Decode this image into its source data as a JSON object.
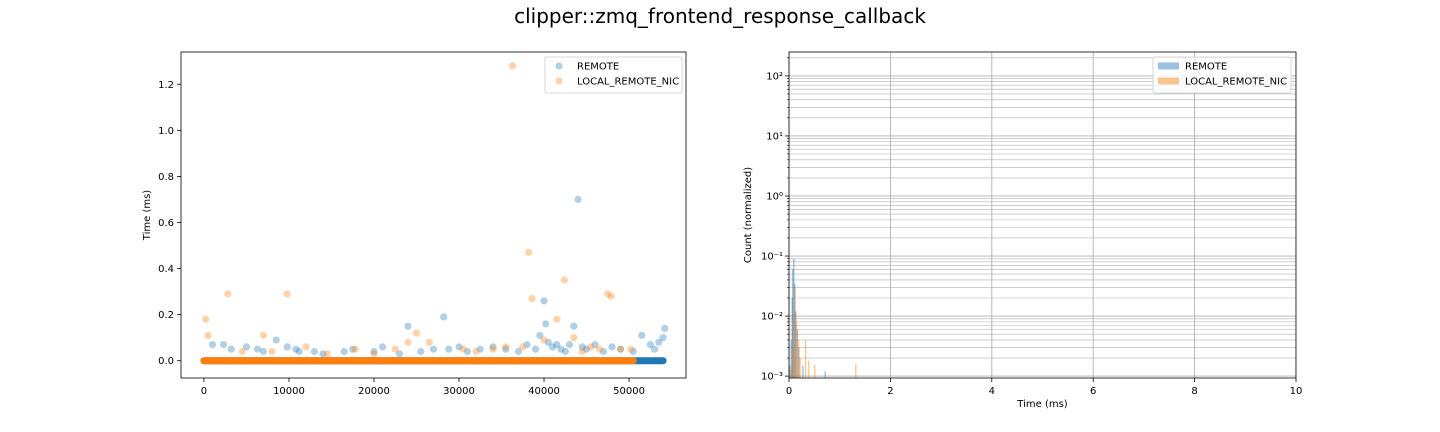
{
  "figure": {
    "title": "clipper::zmq_frontend_response_callback"
  },
  "colors": {
    "remote": "#1f77b4",
    "local": "#ff7f0e",
    "grid": "#b0b0b0"
  },
  "chart_data": [
    {
      "type": "scatter",
      "xlabel": "",
      "ylabel": "Time (ms)",
      "xlim": [
        -2700,
        56700
      ],
      "ylim": [
        -0.075,
        1.34
      ],
      "xticks": [
        0,
        10000,
        20000,
        30000,
        40000,
        50000
      ],
      "xtick_labels": [
        "0",
        "10000",
        "20000",
        "30000",
        "40000",
        "50000"
      ],
      "yticks": [
        0.0,
        0.2,
        0.4,
        0.6,
        0.8,
        1.0,
        1.2
      ],
      "ytick_labels": [
        "0.0",
        "0.2",
        "0.4",
        "0.6",
        "0.8",
        "1.0",
        "1.2"
      ],
      "grid": false,
      "legend": "top-right",
      "series": [
        {
          "name": "REMOTE",
          "baseline": {
            "x_range": [
              0,
              54000
            ],
            "y": 0.0
          },
          "x": [
            1000,
            2300,
            3200,
            5000,
            6300,
            7000,
            8500,
            9800,
            10800,
            11200,
            13000,
            14000,
            16500,
            17500,
            20000,
            21000,
            23000,
            24000,
            25500,
            27000,
            28200,
            28800,
            30000,
            31000,
            32500,
            34000,
            35500,
            37000,
            38000,
            39000,
            39500,
            40000,
            40200,
            40500,
            41000,
            41500,
            42000,
            42500,
            43000,
            43500,
            44000,
            44500,
            45000,
            46000,
            47000,
            48000,
            49000,
            50500,
            51500,
            52500,
            53000,
            53500,
            54000,
            54200
          ],
          "y": [
            0.07,
            0.07,
            0.05,
            0.06,
            0.05,
            0.04,
            0.09,
            0.06,
            0.05,
            0.04,
            0.04,
            0.03,
            0.04,
            0.05,
            0.04,
            0.06,
            0.03,
            0.15,
            0.04,
            0.05,
            0.19,
            0.05,
            0.06,
            0.04,
            0.05,
            0.06,
            0.05,
            0.04,
            0.07,
            0.05,
            0.11,
            0.26,
            0.16,
            0.08,
            0.06,
            0.07,
            0.05,
            0.04,
            0.07,
            0.15,
            0.7,
            0.06,
            0.05,
            0.07,
            0.04,
            0.06,
            0.05,
            0.04,
            0.11,
            0.07,
            0.05,
            0.08,
            0.1,
            0.14
          ]
        },
        {
          "name": "LOCAL_REMOTE_NIC",
          "baseline": {
            "x_range": [
              0,
              50500
            ],
            "y": 0.0
          },
          "x": [
            200,
            500,
            2800,
            4500,
            7000,
            8000,
            9800,
            12000,
            14500,
            17800,
            20000,
            22500,
            24000,
            25000,
            26500,
            30500,
            32000,
            34000,
            35500,
            36300,
            37500,
            38200,
            38600,
            40000,
            41500,
            42400,
            43500,
            44500,
            45500,
            46500,
            47500,
            47900,
            49000,
            50200
          ],
          "y": [
            0.18,
            0.11,
            0.29,
            0.04,
            0.11,
            0.04,
            0.29,
            0.06,
            0.03,
            0.05,
            0.03,
            0.05,
            0.08,
            0.12,
            0.08,
            0.05,
            0.04,
            0.05,
            0.06,
            1.28,
            0.06,
            0.47,
            0.27,
            0.09,
            0.18,
            0.35,
            0.1,
            0.04,
            0.06,
            0.05,
            0.29,
            0.28,
            0.05,
            0.05
          ]
        }
      ]
    },
    {
      "type": "histogram",
      "xlabel": "Time (ms)",
      "ylabel": "Count (normalized)",
      "xlim": [
        0,
        10
      ],
      "ylim": [
        0.00093,
        250
      ],
      "yscale": "log",
      "xticks": [
        0,
        2,
        4,
        6,
        8,
        10
      ],
      "xtick_labels": [
        "0",
        "2",
        "4",
        "6",
        "8",
        "10"
      ],
      "yticks": [
        0.001,
        0.01,
        0.1,
        1,
        10,
        100
      ],
      "ytick_labels": [
        "10⁻³",
        "10⁻²",
        "10⁻¹",
        "10⁰",
        "10¹",
        "10²"
      ],
      "grid": true,
      "legend": "top-right",
      "series": [
        {
          "name": "REMOTE",
          "x": [
            0.0,
            0.03,
            0.05,
            0.06,
            0.08,
            0.1,
            0.12,
            0.15,
            0.18,
            0.26,
            0.7
          ],
          "y": [
            0.0015,
            0.004,
            0.02,
            0.06,
            0.09,
            0.035,
            0.012,
            0.006,
            0.003,
            0.0015,
            0.0012
          ]
        },
        {
          "name": "LOCAL_REMOTE_NIC",
          "x": [
            0.0,
            0.04,
            0.06,
            0.08,
            0.11,
            0.15,
            0.18,
            0.29,
            0.35,
            0.47,
            1.28
          ],
          "y": [
            0.0013,
            0.003,
            0.011,
            0.03,
            0.008,
            0.004,
            0.002,
            0.004,
            0.0018,
            0.0015,
            0.0016
          ]
        }
      ]
    }
  ]
}
